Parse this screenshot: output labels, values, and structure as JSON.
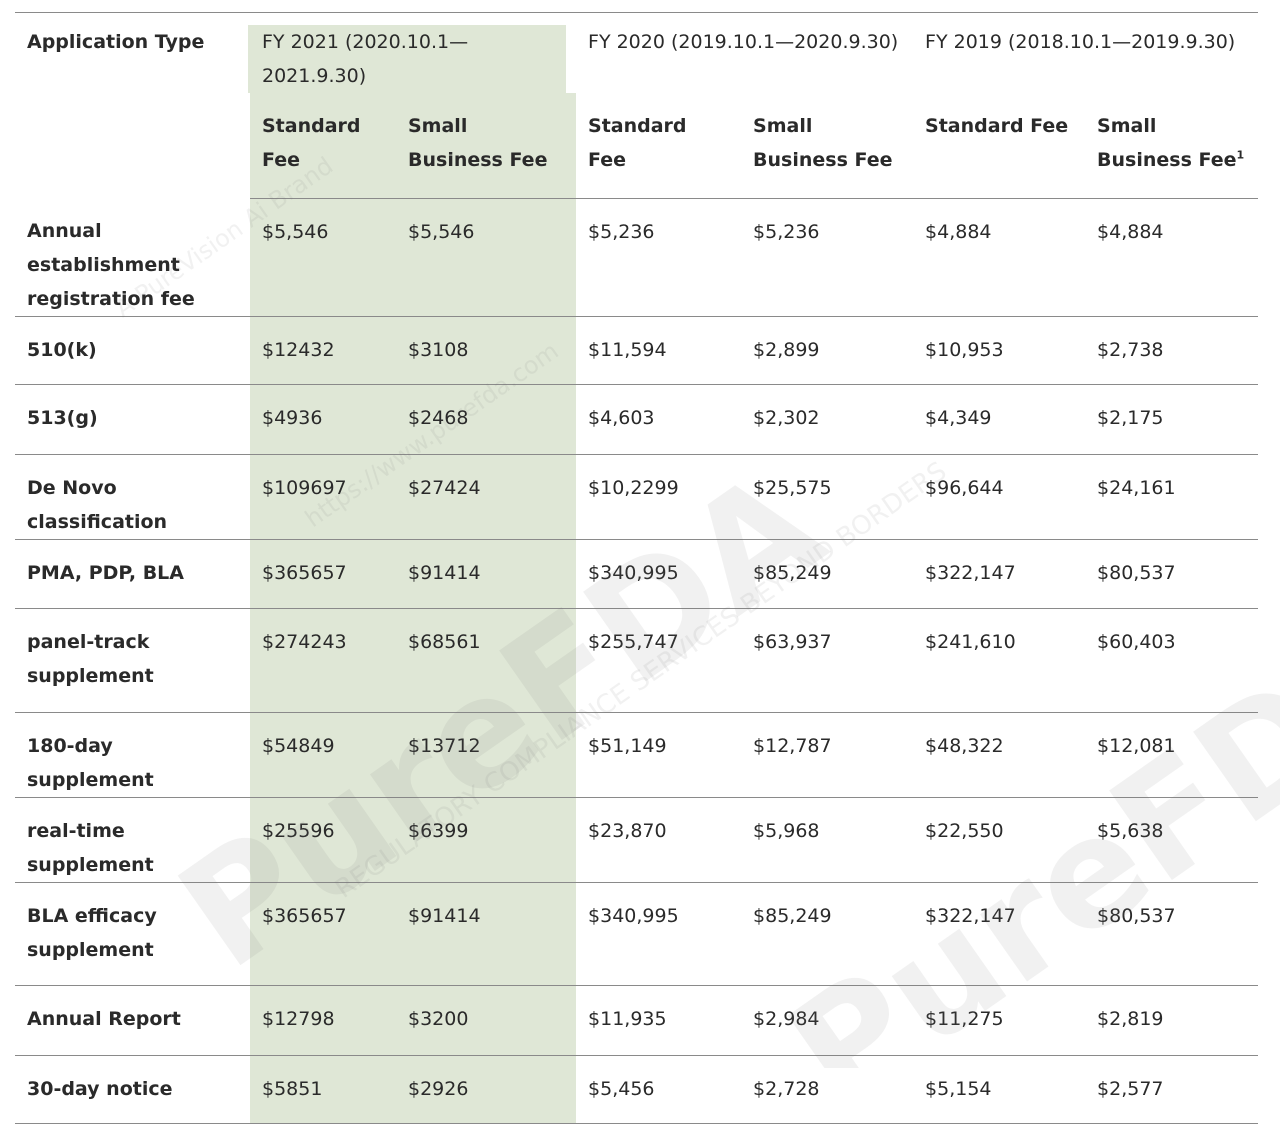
{
  "table": {
    "header": {
      "application_type": "Application Type",
      "groups": [
        {
          "label": "FY 2021 (2020.10.1—2021.9.30)",
          "columns": [
            {
              "label": "Standard Fee"
            },
            {
              "label": "Small Business Fee"
            }
          ]
        },
        {
          "label": "FY 2020 (2019.10.1—2020.9.30)",
          "columns": [
            {
              "label": "Standard Fee"
            },
            {
              "label": "Small Business Fee"
            }
          ]
        },
        {
          "label": "FY 2019 (2018.10.1—2019.9.30)",
          "columns": [
            {
              "label": "Standard Fee"
            },
            {
              "label": "Small Business Fee",
              "note": "1"
            }
          ]
        }
      ]
    },
    "rows": [
      {
        "label": "Annual establishment registration fee",
        "values": [
          "$5,546",
          "$5,546",
          "$5,236",
          "$5,236",
          "$4,884",
          "$4,884"
        ]
      },
      {
        "label": "510(k)",
        "values": [
          "$12432",
          "$3108",
          "$11,594",
          "$2,899",
          "$10,953",
          "$2,738"
        ]
      },
      {
        "label": "513(g)",
        "values": [
          "$4936",
          "$2468",
          "$4,603",
          "$2,302",
          "$4,349",
          "$2,175"
        ]
      },
      {
        "label": "De Novo classification",
        "values": [
          "$109697",
          "$27424",
          "$10,2299",
          "$25,575",
          "$96,644",
          "$24,161"
        ]
      },
      {
        "label": "PMA, PDP, BLA",
        "values": [
          "$365657",
          "$91414",
          "$340,995",
          "$85,249",
          "$322,147",
          "$80,537"
        ]
      },
      {
        "label": "panel-track supplement",
        "values": [
          "$274243",
          "$68561",
          "$255,747",
          "$63,937",
          "$241,610",
          "$60,403"
        ]
      },
      {
        "label": "180-day supplement",
        "values": [
          "$54849",
          "$13712",
          "$51,149",
          "$12,787",
          "$48,322",
          "$12,081"
        ]
      },
      {
        "label": "real-time supplement",
        "values": [
          "$25596",
          "$6399",
          "$23,870",
          "$5,968",
          "$22,550",
          "$5,638"
        ]
      },
      {
        "label": "BLA efficacy supplement",
        "values": [
          "$365657",
          "$91414",
          "$340,995",
          "$85,249",
          "$322,147",
          "$80,537"
        ]
      },
      {
        "label": "Annual Report",
        "values": [
          "$12798",
          "$3200",
          "$11,935",
          "$2,984",
          "$11,275",
          "$2,819"
        ]
      },
      {
        "label": "30-day notice",
        "values": [
          "$5851",
          "$2926",
          "$5,456",
          "$2,728",
          "$5,154",
          "$2,577"
        ]
      }
    ]
  },
  "watermark": {
    "brand": "PureFDA",
    "slogan": "REGULATORY COMPLIANCE SERVICES BEYOND BORDERS",
    "url": "https://www.purefda.com",
    "tagline": "A PureVision Ai Brand"
  }
}
